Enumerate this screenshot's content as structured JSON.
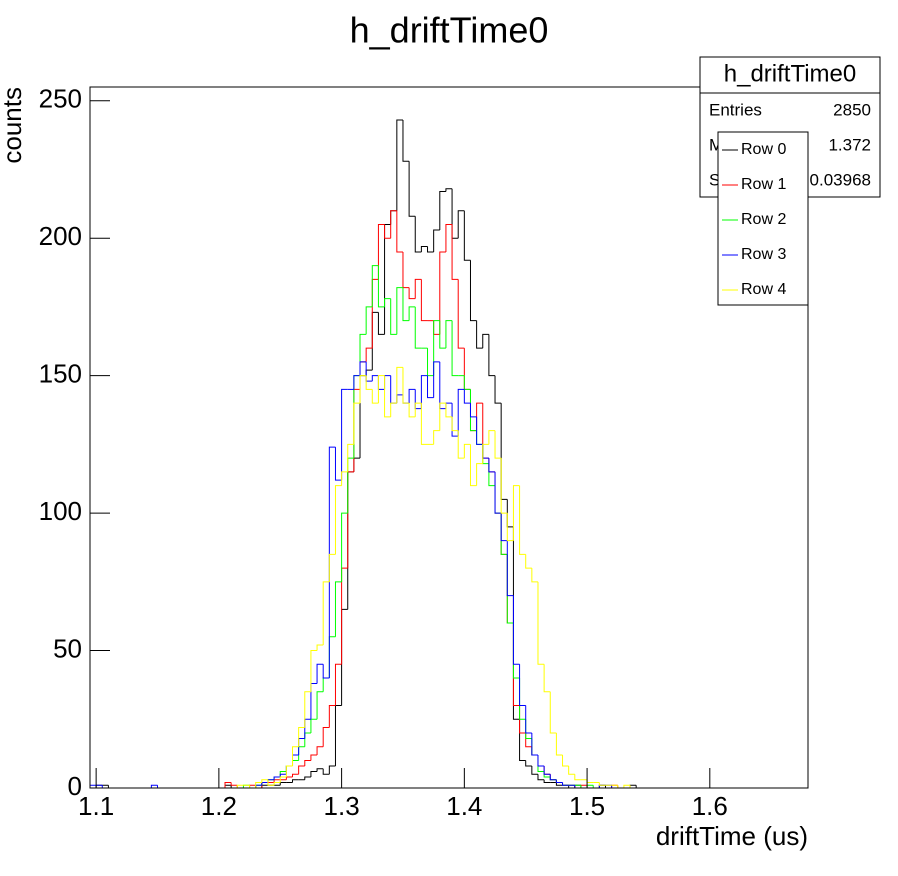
{
  "chart_data": {
    "type": "histogram",
    "title": "h_driftTime0",
    "x_label": "driftTime (us)",
    "y_label": "counts",
    "bins": [
      1.095,
      1.1,
      1.105,
      1.11,
      1.115,
      1.12,
      1.125,
      1.13,
      1.135,
      1.14,
      1.145,
      1.15,
      1.155,
      1.16,
      1.165,
      1.17,
      1.175,
      1.18,
      1.185,
      1.19,
      1.195,
      1.2,
      1.205,
      1.21,
      1.215,
      1.22,
      1.225,
      1.23,
      1.235,
      1.24,
      1.245,
      1.25,
      1.255,
      1.26,
      1.265,
      1.27,
      1.275,
      1.28,
      1.285,
      1.29,
      1.295,
      1.3,
      1.305,
      1.31,
      1.315,
      1.32,
      1.325,
      1.33,
      1.335,
      1.34,
      1.345,
      1.35,
      1.355,
      1.36,
      1.365,
      1.37,
      1.375,
      1.38,
      1.385,
      1.39,
      1.395,
      1.4,
      1.405,
      1.41,
      1.415,
      1.42,
      1.425,
      1.43,
      1.435,
      1.44,
      1.445,
      1.45,
      1.455,
      1.46,
      1.465,
      1.47,
      1.475,
      1.48,
      1.485,
      1.49,
      1.495,
      1.5,
      1.505,
      1.51,
      1.515,
      1.52,
      1.525,
      1.53,
      1.535,
      1.54,
      1.545,
      1.55,
      1.555,
      1.56,
      1.565,
      1.57,
      1.575,
      1.58,
      1.585,
      1.59,
      1.595,
      1.6,
      1.605,
      1.61,
      1.615,
      1.62,
      1.625,
      1.63,
      1.635,
      1.64,
      1.645,
      1.65,
      1.655,
      1.66,
      1.665,
      1.67,
      1.675,
      1.68
    ],
    "series": [
      {
        "name": "Row 0",
        "color": "#000000",
        "values": [
          0,
          1,
          1,
          0,
          0,
          0,
          0,
          0,
          0,
          0,
          0,
          0,
          0,
          0,
          0,
          0,
          0,
          0,
          0,
          0,
          0,
          0,
          1,
          0,
          0,
          0,
          0,
          0,
          1,
          1,
          1,
          2,
          2,
          3,
          3,
          4,
          6,
          7,
          5,
          8,
          30,
          65,
          115,
          120,
          150,
          152,
          173,
          165,
          205,
          210,
          243,
          228,
          208,
          195,
          197,
          195,
          203,
          217,
          218,
          200,
          210,
          192,
          170,
          160,
          165,
          150,
          140,
          105,
          95,
          25,
          10,
          8,
          5,
          3,
          2,
          2,
          1,
          1,
          0,
          1,
          0,
          0,
          0,
          1,
          0,
          0,
          0,
          0,
          1,
          0,
          0,
          0,
          0,
          0,
          0,
          0,
          0,
          0,
          0,
          0,
          0,
          0,
          0,
          0,
          0,
          0,
          0,
          0,
          0,
          0,
          0,
          0,
          0,
          0,
          0,
          0,
          0
        ]
      },
      {
        "name": "Row 1",
        "color": "#ff0000",
        "values": [
          0,
          0,
          0,
          0,
          0,
          0,
          0,
          0,
          0,
          0,
          0,
          0,
          0,
          0,
          0,
          0,
          0,
          0,
          0,
          0,
          0,
          0,
          2,
          1,
          0,
          0,
          1,
          0,
          2,
          2,
          3,
          3,
          4,
          5,
          8,
          10,
          12,
          15,
          22,
          30,
          45,
          80,
          115,
          145,
          155,
          160,
          185,
          205,
          200,
          210,
          195,
          182,
          178,
          185,
          170,
          170,
          165,
          195,
          205,
          185,
          160,
          145,
          130,
          140,
          120,
          115,
          100,
          85,
          60,
          30,
          20,
          15,
          12,
          8,
          5,
          3,
          2,
          1,
          1,
          0,
          1,
          0,
          0,
          0,
          0,
          1,
          0,
          0,
          0,
          0,
          0,
          0,
          0,
          0,
          0,
          0,
          0,
          0,
          0,
          0,
          0,
          0,
          0,
          0,
          0,
          0,
          0,
          0,
          0,
          0,
          0,
          0,
          0,
          0,
          0,
          0,
          0
        ]
      },
      {
        "name": "Row 2",
        "color": "#00ff00",
        "values": [
          0,
          0,
          0,
          0,
          0,
          0,
          0,
          0,
          0,
          0,
          0,
          0,
          0,
          0,
          0,
          0,
          0,
          0,
          0,
          0,
          0,
          0,
          0,
          0,
          0,
          1,
          0,
          1,
          2,
          3,
          4,
          6,
          8,
          10,
          15,
          20,
          25,
          35,
          40,
          55,
          75,
          100,
          120,
          150,
          165,
          175,
          190,
          175,
          178,
          165,
          182,
          170,
          175,
          160,
          160,
          150,
          170,
          160,
          170,
          150,
          150,
          145,
          130,
          125,
          118,
          110,
          100,
          85,
          60,
          40,
          25,
          18,
          12,
          6,
          4,
          3,
          2,
          1,
          1,
          1,
          0,
          1,
          0,
          0,
          0,
          0,
          0,
          0,
          0,
          0,
          0,
          0,
          0,
          0,
          0,
          0,
          0,
          0,
          0,
          0,
          0,
          0,
          0,
          0,
          0,
          0,
          0,
          0,
          0,
          0,
          0,
          0,
          0,
          0,
          0,
          0,
          0
        ]
      },
      {
        "name": "Row 3",
        "color": "#0000ff",
        "values": [
          1,
          1,
          0,
          0,
          0,
          0,
          0,
          0,
          0,
          0,
          1,
          0,
          0,
          0,
          0,
          0,
          0,
          0,
          0,
          0,
          0,
          0,
          0,
          0,
          0,
          0,
          0,
          1,
          2,
          3,
          4,
          5,
          8,
          12,
          18,
          25,
          38,
          45,
          40,
          124,
          112,
          145,
          145,
          150,
          155,
          148,
          150,
          145,
          150,
          140,
          143,
          140,
          145,
          138,
          150,
          142,
          155,
          138,
          140,
          128,
          145,
          140,
          135,
          125,
          120,
          115,
          100,
          90,
          70,
          45,
          30,
          20,
          12,
          8,
          5,
          3,
          2,
          1,
          1,
          0,
          0,
          0,
          0,
          1,
          1,
          0,
          0,
          0,
          0,
          0,
          0,
          0,
          0,
          0,
          0,
          0,
          0,
          0,
          0,
          0,
          0,
          0,
          0,
          0,
          0,
          0,
          0,
          0,
          0,
          0,
          0,
          0,
          0,
          0,
          0,
          0,
          0
        ]
      },
      {
        "name": "Row 4",
        "color": "#ffff00",
        "values": [
          0,
          0,
          0,
          0,
          0,
          0,
          0,
          0,
          0,
          0,
          0,
          0,
          0,
          0,
          0,
          0,
          0,
          0,
          0,
          0,
          0,
          0,
          0,
          0,
          1,
          1,
          0,
          2,
          3,
          1,
          2,
          4,
          8,
          15,
          22,
          35,
          50,
          52,
          75,
          85,
          110,
          115,
          125,
          140,
          150,
          145,
          140,
          150,
          135,
          140,
          153,
          140,
          135,
          140,
          125,
          125,
          130,
          140,
          135,
          130,
          120,
          125,
          110,
          118,
          125,
          130,
          120,
          100,
          90,
          110,
          85,
          80,
          75,
          45,
          35,
          20,
          12,
          8,
          5,
          3,
          3,
          2,
          2,
          1,
          1,
          1,
          0,
          1,
          0,
          0,
          0,
          0,
          0,
          0,
          0,
          0,
          0,
          0,
          0,
          0,
          0,
          0,
          0,
          0,
          0,
          0,
          0,
          0,
          0,
          0,
          0,
          0,
          0,
          0,
          0,
          0,
          0
        ]
      }
    ],
    "xlim": [
      1.095,
      1.68
    ],
    "ylim": [
      0,
      255
    ],
    "xticks": [
      1.1,
      1.2,
      1.3,
      1.4,
      1.5,
      1.6
    ],
    "yticks": [
      0,
      50,
      100,
      150,
      200,
      250
    ],
    "stats_box": {
      "title": "h_driftTime0",
      "rows": [
        [
          "Entries",
          "2850"
        ],
        [
          "Mean",
          "1.372"
        ],
        [
          "Std Dev",
          "0.03968"
        ]
      ]
    }
  }
}
